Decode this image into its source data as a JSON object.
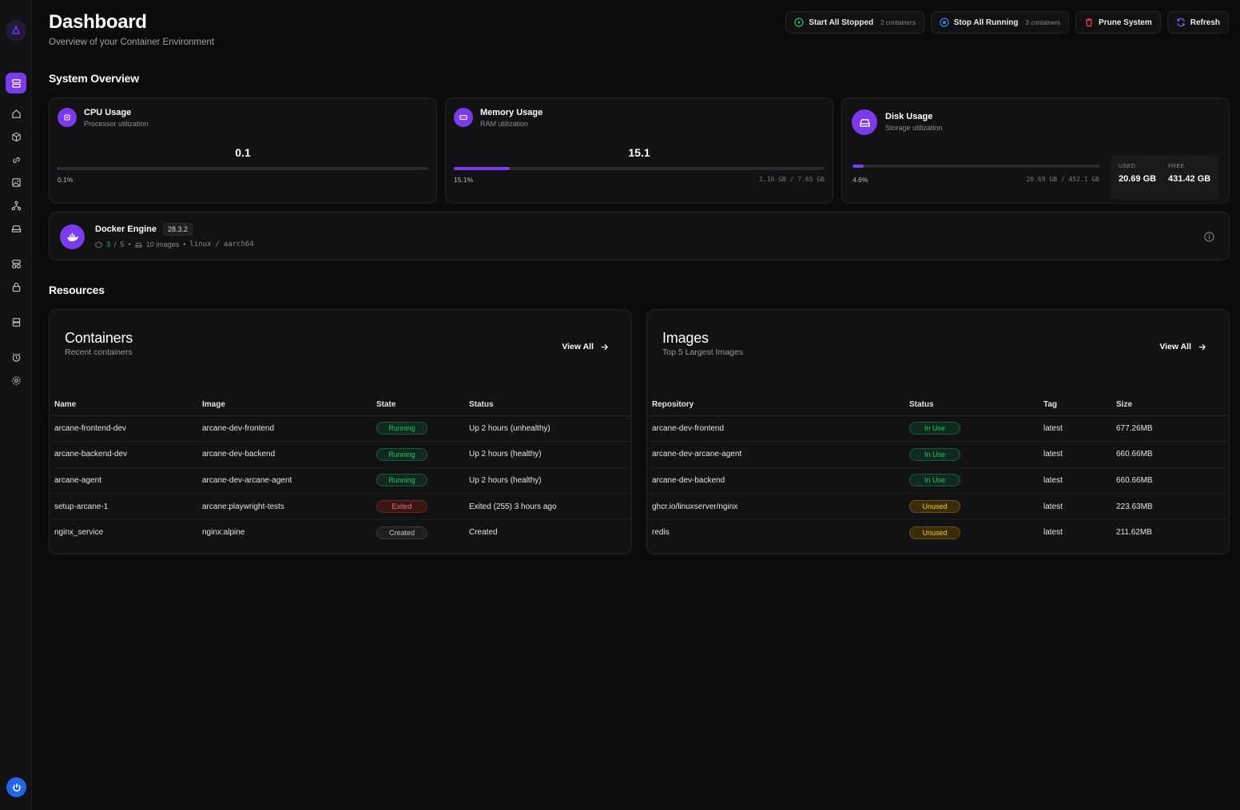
{
  "header": {
    "title": "Dashboard",
    "subtitle": "Overview of your Container Environment"
  },
  "actions": {
    "start_label": "Start All Stopped",
    "start_count": "2 containers",
    "stop_label": "Stop All Running",
    "stop_count": "3 containers",
    "prune_label": "Prune System",
    "refresh_label": "Refresh"
  },
  "sidebar": {
    "logo_icon": "arcane-logo-icon",
    "items": [
      "containers",
      "home",
      "compose",
      "networks",
      "images",
      "projects",
      "volumes",
      "templates",
      "registries",
      "environments",
      "events",
      "settings"
    ]
  },
  "system": {
    "section_title": "System Overview",
    "cpu": {
      "title": "CPU Usage",
      "subtitle": "Processor utilization",
      "value": "0.1",
      "percent": "0.1%",
      "fill_fraction": 0.001
    },
    "memory": {
      "title": "Memory Usage",
      "subtitle": "RAM utilization",
      "value": "15.1",
      "percent": "15.1%",
      "amount": "1.16 GB / 7.65 GB",
      "fill_fraction": 0.151
    },
    "disk": {
      "title": "Disk Usage",
      "subtitle": "Storage utilization",
      "percent": "4.6%",
      "amount": "20.69 GB / 452.1 GB",
      "fill_fraction": 0.046,
      "used_label": "USED",
      "used_value": "20.69 GB",
      "free_label": "FREE",
      "free_value": "431.42 GB"
    },
    "docker": {
      "title": "Docker Engine",
      "version": "28.3.2",
      "running": "3",
      "sep": "/",
      "total": "5",
      "images": "10 images",
      "os": "linux",
      "slash": "/",
      "arch": "aarch64",
      "dot": "•"
    }
  },
  "resources": {
    "section_title": "Resources",
    "containers": {
      "title": "Containers",
      "subtitle": "Recent containers",
      "view_all": "View All",
      "columns": [
        "Name",
        "Image",
        "State",
        "Status"
      ],
      "rows": [
        {
          "name": "arcane-frontend-dev",
          "image": "arcane-dev-frontend",
          "state": "Running",
          "state_kind": "running",
          "status": "Up 2 hours (unhealthy)"
        },
        {
          "name": "arcane-backend-dev",
          "image": "arcane-dev-backend",
          "state": "Running",
          "state_kind": "running",
          "status": "Up 2 hours (healthy)"
        },
        {
          "name": "arcane-agent",
          "image": "arcane-dev-arcane-agent",
          "state": "Running",
          "state_kind": "running",
          "status": "Up 2 hours (healthy)"
        },
        {
          "name": "setup-arcane-1",
          "image": "arcane:playwright-tests",
          "state": "Exited",
          "state_kind": "exited",
          "status": "Exited (255) 3 hours ago"
        },
        {
          "name": "nginx_service",
          "image": "nginx:alpine",
          "state": "Created",
          "state_kind": "created",
          "status": "Created"
        }
      ]
    },
    "images": {
      "title": "Images",
      "subtitle": "Top 5 Largest Images",
      "view_all": "View All",
      "columns": [
        "Repository",
        "Status",
        "Tag",
        "Size"
      ],
      "rows": [
        {
          "repo": "arcane-dev-frontend",
          "status": "In Use",
          "status_kind": "inuse",
          "tag": "latest",
          "size": "677.26MB"
        },
        {
          "repo": "arcane-dev-arcane-agent",
          "status": "In Use",
          "status_kind": "inuse",
          "tag": "latest",
          "size": "660.66MB"
        },
        {
          "repo": "arcane-dev-backend",
          "status": "In Use",
          "status_kind": "inuse",
          "tag": "latest",
          "size": "660.66MB"
        },
        {
          "repo": "ghcr.io/linuxserver/nginx",
          "status": "Unused",
          "status_kind": "unused",
          "tag": "latest",
          "size": "223.63MB"
        },
        {
          "repo": "redis",
          "status": "Unused",
          "status_kind": "unused",
          "tag": "latest",
          "size": "211.62MB"
        }
      ]
    }
  },
  "colors": {
    "accent": "#7c3aed",
    "running": "#22c55e",
    "exited": "#f87171",
    "unused": "#facc15",
    "power": "#2563eb"
  }
}
